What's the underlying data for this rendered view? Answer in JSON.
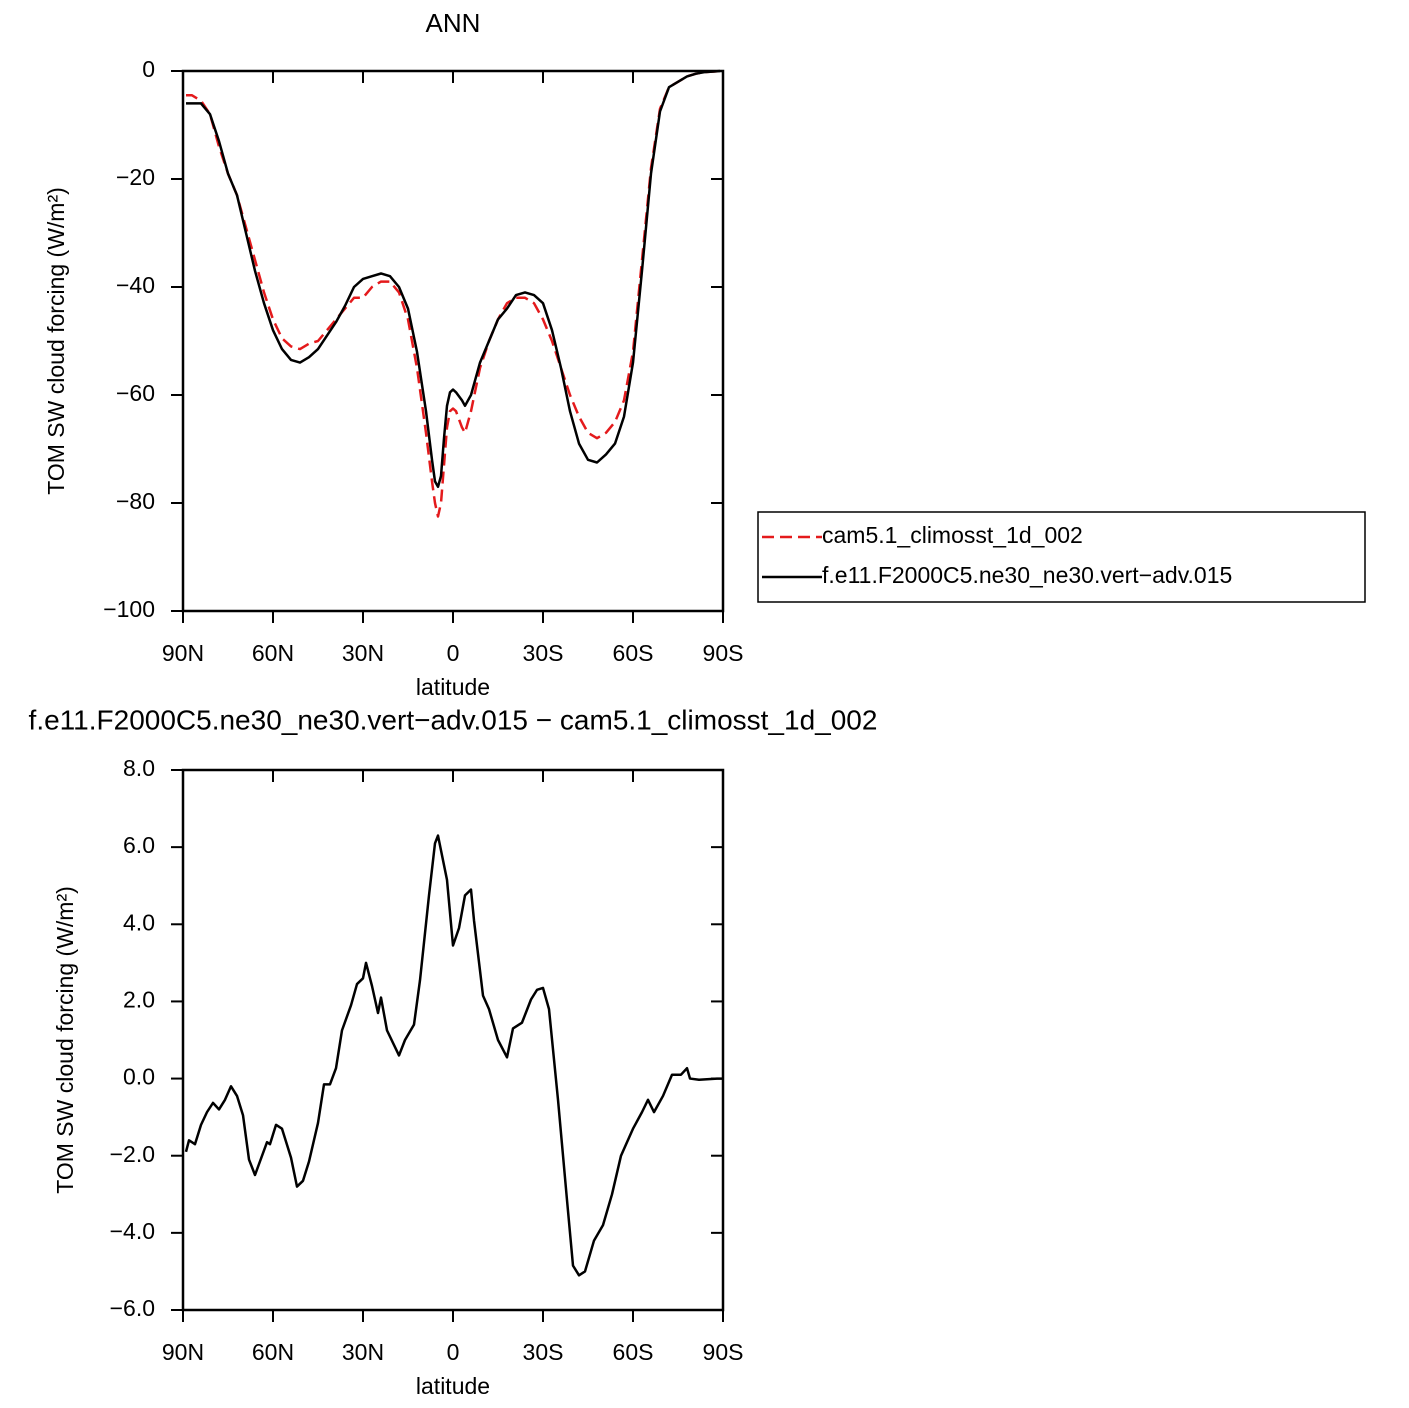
{
  "chart_data": [
    {
      "type": "line",
      "title": "ANN",
      "x_label": "latitude",
      "y_label": "TOM SW cloud forcing (W/m²)",
      "x": [
        89,
        87,
        84,
        81,
        78,
        75,
        72,
        69,
        66,
        63,
        60,
        57,
        54,
        51,
        48,
        45,
        42,
        39,
        36,
        33,
        30,
        27,
        24,
        21,
        18,
        15,
        12,
        9,
        7,
        6,
        5,
        4,
        3,
        2,
        1,
        0,
        -1,
        -3,
        -4,
        -6,
        -9,
        -12,
        -15,
        -18,
        -21,
        -24,
        -27,
        -30,
        -33,
        -36,
        -39,
        -42,
        -45,
        -48,
        -51,
        -54,
        -57,
        -60,
        -63,
        -66,
        -69,
        -72,
        -75,
        -78,
        -81,
        -84,
        -87,
        -89
      ],
      "series": [
        {
          "name": "cam5.1_climosst_1d_002",
          "color": "#e41a1c",
          "line_style": "dashed",
          "values": [
            -4.5,
            -4.5,
            -5.5,
            -8,
            -14,
            -19,
            -23,
            -29,
            -35,
            -41,
            -46,
            -49.5,
            -51,
            -51.5,
            -50.5,
            -50,
            -48,
            -46,
            -44,
            -42,
            -42,
            -40,
            -39,
            -39,
            -41,
            -46,
            -55,
            -67,
            -76,
            -80,
            -82.5,
            -80,
            -73,
            -66,
            -63,
            -62.5,
            -63,
            -66,
            -67,
            -63,
            -55,
            -50,
            -46,
            -43,
            -42,
            -42,
            -43,
            -46,
            -50,
            -55,
            -60,
            -64,
            -67,
            -68,
            -67,
            -65,
            -61,
            -52,
            -35,
            -18,
            -7,
            -3,
            -2,
            -1,
            -0.5,
            -0.2,
            -0.1,
            0
          ]
        },
        {
          "name": "f.e11.F2000C5.ne30_ne30.vert−adv.015",
          "color": "#000000",
          "line_style": "solid",
          "values": [
            -6,
            -6,
            -6,
            -8,
            -13,
            -19,
            -23,
            -30,
            -37,
            -43,
            -48,
            -51.5,
            -53.5,
            -54,
            -53,
            -51.5,
            -49,
            -46.5,
            -43.5,
            -40,
            -38.5,
            -38,
            -37.5,
            -38,
            -40,
            -44,
            -52,
            -63,
            -72,
            -76,
            -77,
            -75,
            -68,
            -62,
            -59.5,
            -59,
            -59.5,
            -61,
            -62,
            -60,
            -54,
            -50,
            -46,
            -44,
            -41.5,
            -41,
            -41.5,
            -43,
            -48,
            -55,
            -63,
            -69,
            -72,
            -72.5,
            -71,
            -69,
            -64,
            -54,
            -37,
            -19,
            -7.5,
            -3,
            -2,
            -1,
            -0.5,
            -0.2,
            -0.1,
            0
          ]
        }
      ],
      "xlim": [
        90,
        -90
      ],
      "xticks": [
        {
          "value": 90,
          "label": "90N"
        },
        {
          "value": 60,
          "label": "60N"
        },
        {
          "value": 30,
          "label": "30N"
        },
        0,
        {
          "value": -30,
          "label": "30S"
        },
        {
          "value": -60,
          "label": "60S"
        },
        {
          "value": -90,
          "label": "90S"
        }
      ],
      "ylim": [
        -100,
        0
      ],
      "yticks": [
        {
          "value": -100,
          "label": "−100"
        },
        {
          "value": -80,
          "label": "−80"
        },
        {
          "value": -60,
          "label": "−60"
        },
        {
          "value": -40,
          "label": "−40"
        },
        {
          "value": -20,
          "label": "−20"
        },
        0
      ],
      "legend": "right"
    },
    {
      "type": "line",
      "title": "f.e11.F2000C5.ne30_ne30.vert−adv.015 − cam5.1_climosst_1d_002",
      "x_label": "latitude",
      "y_label": "TOM SW cloud forcing (W/m²)",
      "x": [
        89,
        88,
        86,
        84,
        82,
        80,
        78,
        76,
        74,
        72,
        70,
        68,
        66,
        62,
        61,
        59,
        57,
        54,
        52,
        50,
        48,
        45,
        43,
        41,
        39,
        37,
        34,
        32,
        30,
        29,
        27,
        25,
        24,
        22,
        18,
        16,
        13,
        11,
        8,
        6,
        5,
        2,
        0,
        -2,
        -4,
        -6,
        -7,
        -10,
        -12,
        -15,
        -18,
        -20,
        -23,
        -26,
        -28,
        -30,
        -32,
        -35,
        -38,
        -40,
        -42,
        -44,
        -47,
        -50,
        -53,
        -56,
        -60,
        -63,
        -65,
        -67,
        -70,
        -73,
        -76,
        -78,
        -79,
        -82,
        -88,
        -90
      ],
      "series": [
        {
          "color": "#000000",
          "line_style": "solid",
          "values": [
            -1.9,
            -1.6,
            -1.7,
            -1.2,
            -0.87,
            -0.63,
            -0.8,
            -0.55,
            -0.2,
            -0.45,
            -0.95,
            -2.1,
            -2.5,
            -1.65,
            -1.7,
            -1.2,
            -1.3,
            -2.05,
            -2.8,
            -2.65,
            -2.15,
            -1.15,
            -0.15,
            -0.15,
            0.27,
            1.25,
            1.9,
            2.45,
            2.6,
            3.0,
            2.4,
            1.7,
            2.1,
            1.25,
            0.6,
            1.0,
            1.4,
            2.55,
            4.75,
            6.1,
            6.3,
            5.15,
            3.45,
            3.9,
            4.75,
            4.9,
            4.1,
            2.15,
            1.8,
            1.0,
            0.55,
            1.3,
            1.45,
            2.05,
            2.3,
            2.35,
            1.8,
            -0.55,
            -3.15,
            -4.85,
            -5.1,
            -5.0,
            -4.2,
            -3.8,
            -3.0,
            -2.0,
            -1.3,
            -0.87,
            -0.55,
            -0.87,
            -0.45,
            0.1,
            0.1,
            0.27,
            0,
            -0.03,
            0,
            0
          ]
        }
      ],
      "xlim": [
        90,
        -90
      ],
      "xticks": [
        {
          "value": 90,
          "label": "90N"
        },
        {
          "value": 60,
          "label": "60N"
        },
        {
          "value": 30,
          "label": "30N"
        },
        0,
        {
          "value": -30,
          "label": "30S"
        },
        {
          "value": -60,
          "label": "60S"
        },
        {
          "value": -90,
          "label": "90S"
        }
      ],
      "ylim": [
        -6,
        8
      ],
      "yticks": [
        {
          "value": -6,
          "label": "−6.0"
        },
        {
          "value": -4,
          "label": "−4.0"
        },
        {
          "value": -2,
          "label": "−2.0"
        },
        {
          "value": 0,
          "label": "0.0"
        },
        {
          "value": 2,
          "label": "2.0"
        },
        {
          "value": 4,
          "label": "4.0"
        },
        {
          "value": 6,
          "label": "6.0"
        },
        {
          "value": 8,
          "label": "8.0"
        }
      ]
    }
  ]
}
